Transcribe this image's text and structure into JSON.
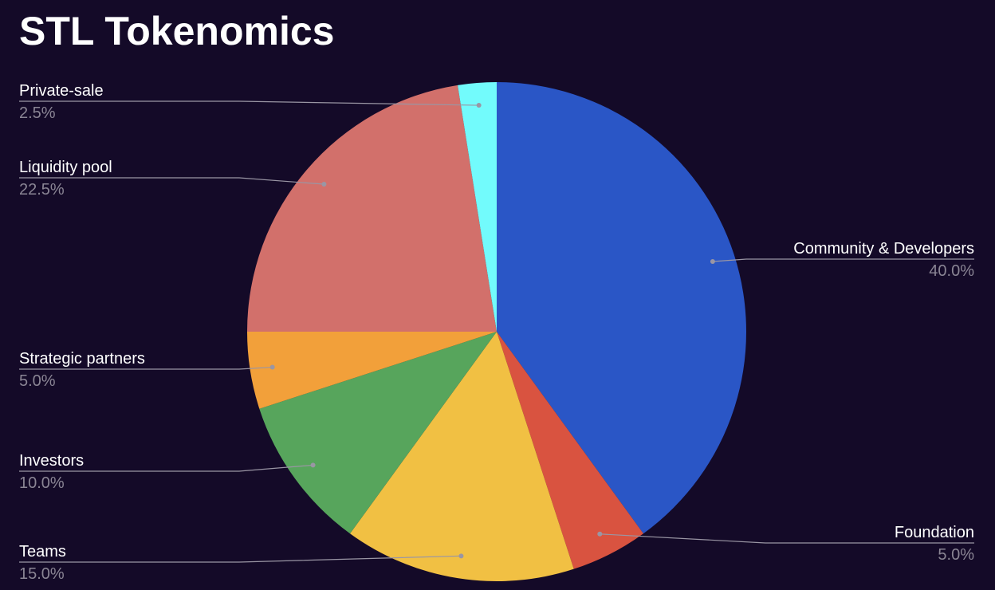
{
  "chart_data": {
    "type": "pie",
    "title": "STL Tokenomics",
    "start_angle_deg": 0,
    "direction": "clockwise",
    "slices": [
      {
        "label": "Community & Developers",
        "value": 40.0,
        "display": "40.0%",
        "color": "#2a56c6"
      },
      {
        "label": "Foundation",
        "value": 5.0,
        "display": "5.0%",
        "color": "#d95340"
      },
      {
        "label": "Teams",
        "value": 15.0,
        "display": "15.0%",
        "color": "#f1c043"
      },
      {
        "label": "Investors",
        "value": 10.0,
        "display": "10.0%",
        "color": "#57a55c"
      },
      {
        "label": "Strategic partners",
        "value": 5.0,
        "display": "5.0%",
        "color": "#f2a03a"
      },
      {
        "label": "Liquidity pool",
        "value": 22.5,
        "display": "22.5%",
        "color": "#d2706b"
      },
      {
        "label": "Private-sale",
        "value": 2.5,
        "display": "2.5%",
        "color": "#72fbfc"
      }
    ]
  }
}
